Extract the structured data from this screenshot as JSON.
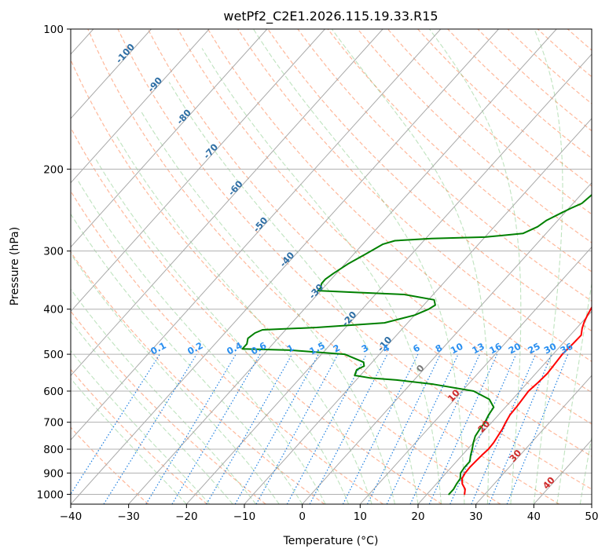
{
  "chart_data": {
    "type": "line",
    "title": "wetPf2_C2E1.2026.115.19.33.R15",
    "xlabel": "Temperature (°C)",
    "ylabel": "Pressure (hPa)",
    "xlim": [
      -40,
      50
    ],
    "ylim": [
      1050,
      100
    ],
    "yscale": "log",
    "x_ticks": [
      -40,
      -30,
      -20,
      -10,
      0,
      10,
      20,
      30,
      40,
      50
    ],
    "y_ticks": [
      100,
      200,
      300,
      400,
      500,
      600,
      700,
      800,
      900,
      1000
    ],
    "grid": true,
    "series": [
      {
        "color": "#ff0000",
        "points": [
          [
            26.5,
            1000
          ],
          [
            25.8,
            975
          ],
          [
            24.5,
            950
          ],
          [
            23.6,
            925
          ],
          [
            23.3,
            900
          ],
          [
            23.2,
            875
          ],
          [
            23.3,
            850
          ],
          [
            23.4,
            825
          ],
          [
            23.6,
            800
          ],
          [
            23.5,
            775
          ],
          [
            23.2,
            750
          ],
          [
            22.9,
            725
          ],
          [
            22.4,
            700
          ],
          [
            22.0,
            675
          ],
          [
            21.9,
            650
          ],
          [
            21.7,
            625
          ],
          [
            21.5,
            600
          ],
          [
            21.8,
            575
          ],
          [
            22.0,
            550
          ],
          [
            21.8,
            525
          ],
          [
            21.6,
            500
          ],
          [
            21.8,
            475
          ],
          [
            21.9,
            455
          ],
          [
            21.0,
            440
          ],
          [
            20.3,
            425
          ],
          [
            19.8,
            410
          ],
          [
            19.2,
            390
          ],
          [
            18.5,
            370
          ],
          [
            17.9,
            350
          ],
          [
            17.2,
            330
          ],
          [
            16.6,
            315
          ],
          [
            14.5,
            290
          ],
          [
            12.6,
            270
          ],
          [
            9.8,
            250
          ],
          [
            7.8,
            232
          ],
          [
            6.5,
            218
          ],
          [
            5.2,
            203
          ],
          [
            4.5,
            193
          ],
          [
            3.5,
            182
          ],
          [
            1.5,
            165
          ],
          [
            -0.5,
            152
          ],
          [
            -1.5,
            145
          ]
        ]
      },
      {
        "color": "#008000",
        "points": [
          [
            23.8,
            1000
          ],
          [
            23.8,
            975
          ],
          [
            23.5,
            950
          ],
          [
            23.3,
            925
          ],
          [
            22.5,
            900
          ],
          [
            22.3,
            875
          ],
          [
            22.3,
            850
          ],
          [
            21.5,
            825
          ],
          [
            20.8,
            800
          ],
          [
            20.0,
            775
          ],
          [
            19.3,
            750
          ],
          [
            19.0,
            725
          ],
          [
            18.8,
            700
          ],
          [
            18.3,
            675
          ],
          [
            18.0,
            650
          ],
          [
            16.0,
            625
          ],
          [
            12.0,
            600
          ],
          [
            4.0,
            580
          ],
          [
            -3.0,
            568
          ],
          [
            -8.0,
            562
          ],
          [
            -11.0,
            555
          ],
          [
            -11.5,
            540
          ],
          [
            -10.8,
            530
          ],
          [
            -11.5,
            520
          ],
          [
            -16.0,
            500
          ],
          [
            -26.0,
            490
          ],
          [
            -34.5,
            487
          ],
          [
            -34.5,
            475
          ],
          [
            -35.2,
            462
          ],
          [
            -34.8,
            450
          ],
          [
            -34.0,
            443
          ],
          [
            -25.0,
            438
          ],
          [
            -14.0,
            428
          ],
          [
            -10.0,
            412
          ],
          [
            -8.5,
            400
          ],
          [
            -8.0,
            392
          ],
          [
            -9.0,
            382
          ],
          [
            -15.0,
            372
          ],
          [
            -24.0,
            368
          ],
          [
            -30.5,
            365
          ],
          [
            -30.5,
            360
          ],
          [
            -31.0,
            352
          ],
          [
            -31.0,
            345
          ],
          [
            -30.5,
            335
          ],
          [
            -29.5,
            320
          ],
          [
            -28.0,
            305
          ],
          [
            -26.5,
            290
          ],
          [
            -25.0,
            285
          ],
          [
            -19.0,
            282
          ],
          [
            -10.0,
            280
          ],
          [
            -4.0,
            275
          ],
          [
            -2.5,
            266
          ],
          [
            -2.0,
            258
          ],
          [
            -0.5,
            248
          ],
          [
            0.5,
            242
          ],
          [
            1.5,
            237
          ],
          [
            2.0,
            225
          ],
          [
            2.8,
            217
          ],
          [
            2.9,
            205
          ],
          [
            2.5,
            197
          ],
          [
            2.0,
            188
          ],
          [
            1.5,
            180
          ],
          [
            0.0,
            163
          ],
          [
            -0.5,
            153
          ],
          [
            -1.0,
            146
          ],
          [
            -1.5,
            138
          ],
          [
            -1.6,
            130
          ],
          [
            -1.2,
            124
          ],
          [
            0.0,
            117
          ],
          [
            1.5,
            110
          ],
          [
            2.2,
            104
          ],
          [
            2.5,
            100
          ]
        ]
      }
    ],
    "dry_adiabats": [
      -100,
      -90,
      -80,
      -70,
      -60,
      -50,
      -40,
      -30,
      -20,
      -10,
      0,
      10,
      20,
      30,
      40
    ],
    "mixing_ratio_lines": [
      "0.1",
      "0.2",
      "0.4",
      "0.6",
      "1",
      "1.5",
      "2",
      "3",
      "4",
      "6",
      "8",
      "10",
      "13",
      "16",
      "20",
      "25",
      "30",
      "36"
    ]
  }
}
